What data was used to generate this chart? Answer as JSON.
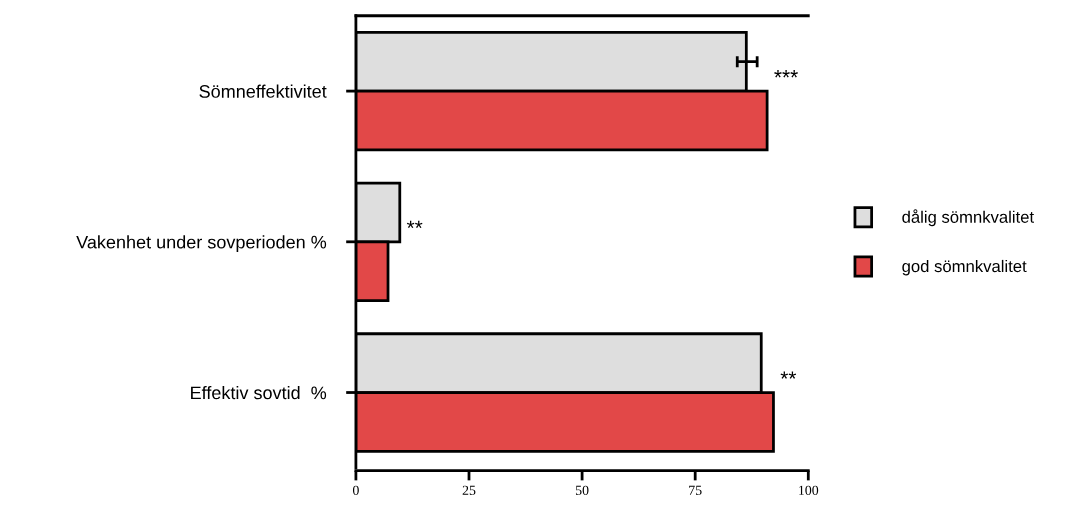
{
  "chart_data": {
    "type": "bar",
    "orientation": "horizontal",
    "categories": [
      "Sömneffektivitet",
      "Vakenhet under sovperioden %",
      "Effektiv sovtid  %"
    ],
    "series": [
      {
        "name": "dålig sömnkvalitet",
        "color": "#dedede",
        "values": [
          86.3,
          9.7,
          89.6
        ],
        "errors": [
          [
            84.3,
            88.7
          ],
          null,
          null
        ]
      },
      {
        "name": "god sömnkvalitet",
        "color": "#e24848",
        "values": [
          90.9,
          7.1,
          92.3
        ]
      }
    ],
    "xlim": [
      0,
      100
    ],
    "xticks": [
      0,
      25,
      50,
      75,
      100
    ],
    "grid": false,
    "legend": "right",
    "annotations": [
      "***",
      "**",
      "**"
    ]
  }
}
